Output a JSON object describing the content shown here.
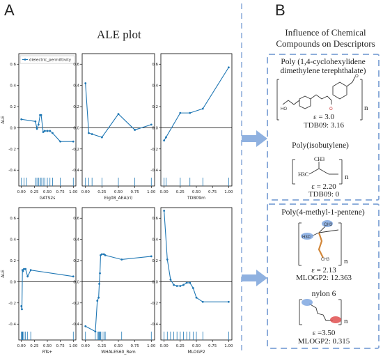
{
  "panels": {
    "a_label": "A",
    "b_label": "B"
  },
  "ale": {
    "title": "ALE plot"
  },
  "influence": {
    "title_line1": "Influence of Chemical",
    "title_line2": "Compounds on Descriptors",
    "group1": {
      "item1": {
        "name_line1": "Poly (1,4-cyclohexylidene",
        "name_line2": "dimethylene terephthalate)",
        "eps": "ε = 3.0",
        "desc": "TDB09: 3.16",
        "mark_n": "n"
      },
      "item2": {
        "name": "Poly(isobutylene)",
        "eps": "ε = 2.20",
        "desc": "TDB09: 0",
        "mark_n": "n",
        "atom_h3c": "H3C",
        "atom_ch3": "CH3"
      }
    },
    "group2": {
      "item1": {
        "name": "Poly(4-methyl-1-pentene)",
        "eps": "ε = 2.13",
        "desc": "MLOGP2: 12.363",
        "mark_n": "n"
      },
      "item2": {
        "name": "nylon 6",
        "eps": "ε =3.50",
        "desc": "MLOGP2: 0.315",
        "mark_n": "n"
      }
    }
  },
  "colors": {
    "line": "#1f77b4",
    "arrow": "#8fb1e0",
    "dash": "#7fa3d6",
    "highlight_blue": "#7fa7e0",
    "highlight_red": "#e05050",
    "bond_orange": "#d2873a"
  },
  "chart_data": [
    {
      "type": "line",
      "xlabel": "GATS2s",
      "ylabel": "ALE",
      "legend": "dielectric_permittivity",
      "ylim": [
        -0.55,
        0.7
      ],
      "xlim": [
        -0.05,
        1.05
      ],
      "yticks": [
        -0.4,
        -0.2,
        0.0,
        0.2,
        0.4,
        0.6
      ],
      "xticks": [
        0.0,
        0.25,
        0.5,
        0.75,
        1.0
      ],
      "x": [
        0.0,
        0.27,
        0.3,
        0.33,
        0.36,
        0.38,
        0.42,
        0.45,
        0.5,
        0.55,
        0.6,
        0.75,
        1.0
      ],
      "y": [
        0.08,
        0.06,
        -0.01,
        0.03,
        0.12,
        0.12,
        -0.04,
        -0.03,
        -0.03,
        -0.03,
        -0.05,
        -0.13,
        -0.13
      ],
      "rug": [
        0.0,
        0.05,
        0.1,
        0.27,
        0.3,
        0.33,
        0.36,
        0.38,
        0.42,
        0.45,
        0.5,
        0.55,
        0.6,
        0.75,
        1.0
      ]
    },
    {
      "type": "line",
      "xlabel": "Eig08_AEA(ri)",
      "ylabel": "",
      "ylim": [
        -0.55,
        0.7
      ],
      "xlim": [
        -0.05,
        1.05
      ],
      "yticks": [
        -0.4,
        -0.2,
        0.0,
        0.2,
        0.4,
        0.6
      ],
      "xticks": [
        0.0,
        0.25,
        0.5,
        0.75,
        1.0
      ],
      "x": [
        0.0,
        0.05,
        0.1,
        0.25,
        0.5,
        0.75,
        1.0
      ],
      "y": [
        0.42,
        -0.05,
        -0.06,
        -0.09,
        0.13,
        -0.02,
        0.03
      ],
      "rug": [
        0.0,
        0.05,
        0.1,
        0.25,
        0.5,
        0.75,
        1.0
      ]
    },
    {
      "type": "line",
      "xlabel": "TDB09m",
      "ylabel": "",
      "ylim": [
        -0.55,
        0.7
      ],
      "xlim": [
        -0.05,
        1.05
      ],
      "yticks": [
        -0.4,
        -0.2,
        0.0,
        0.2,
        0.4,
        0.6
      ],
      "xticks": [
        0.0,
        0.25,
        0.5,
        0.75,
        1.0
      ],
      "x": [
        0.0,
        0.03,
        0.25,
        0.4,
        0.6,
        1.0
      ],
      "y": [
        -0.12,
        -0.09,
        0.14,
        0.14,
        0.18,
        0.57
      ],
      "rug": [
        0.0,
        0.03,
        0.25,
        0.4,
        0.6,
        1.0
      ]
    },
    {
      "type": "line",
      "xlabel": "RTs+",
      "ylabel": "ALE",
      "ylim": [
        -0.55,
        0.7
      ],
      "xlim": [
        -0.05,
        1.05
      ],
      "yticks": [
        -0.4,
        -0.2,
        0.0,
        0.2,
        0.4,
        0.6
      ],
      "xticks": [
        0.0,
        0.25,
        0.5,
        0.75,
        1.0
      ],
      "x": [
        0.0,
        0.01,
        0.02,
        0.03,
        0.05,
        0.08,
        0.12,
        0.18,
        1.0
      ],
      "y": [
        -0.23,
        -0.26,
        0.11,
        0.1,
        0.12,
        0.12,
        0.05,
        0.11,
        0.05
      ],
      "rug": [
        0.0,
        0.01,
        0.02,
        0.03,
        0.05,
        0.08,
        0.12,
        0.18,
        1.0
      ]
    },
    {
      "type": "line",
      "xlabel": "WHALES60_Rem",
      "ylabel": "",
      "ylim": [
        -0.55,
        0.7
      ],
      "xlim": [
        -0.05,
        1.05
      ],
      "yticks": [
        -0.4,
        -0.2,
        0.0,
        0.2,
        0.4,
        0.6
      ],
      "xticks": [
        0.0,
        0.25,
        0.5,
        0.75,
        1.0
      ],
      "x": [
        0.0,
        0.15,
        0.18,
        0.2,
        0.21,
        0.22,
        0.23,
        0.25,
        0.28,
        0.3,
        0.55,
        1.0
      ],
      "y": [
        -0.42,
        -0.47,
        -0.18,
        -0.15,
        -0.02,
        0.08,
        0.25,
        0.26,
        0.26,
        0.25,
        0.21,
        0.24
      ],
      "rug": [
        0.0,
        0.15,
        0.18,
        0.2,
        0.21,
        0.22,
        0.23,
        0.25,
        0.28,
        0.3,
        0.55,
        1.0
      ]
    },
    {
      "type": "line",
      "xlabel": "MLOGP2",
      "ylabel": "",
      "ylim": [
        -0.55,
        0.7
      ],
      "xlim": [
        -0.05,
        1.05
      ],
      "yticks": [
        -0.4,
        -0.2,
        0.0,
        0.2,
        0.4,
        0.6
      ],
      "xticks": [
        0.0,
        0.25,
        0.5,
        0.75,
        1.0
      ],
      "x": [
        0.0,
        0.05,
        0.1,
        0.15,
        0.2,
        0.25,
        0.3,
        0.35,
        0.4,
        0.45,
        0.5,
        0.6,
        1.0
      ],
      "y": [
        0.67,
        0.21,
        0.02,
        -0.03,
        -0.04,
        -0.04,
        -0.03,
        -0.01,
        -0.01,
        -0.06,
        -0.15,
        -0.19,
        -0.19
      ],
      "rug": [
        0.0,
        0.05,
        0.1,
        0.15,
        0.2,
        0.25,
        0.3,
        0.35,
        0.4,
        0.45,
        0.5,
        0.6,
        1.0
      ]
    }
  ]
}
